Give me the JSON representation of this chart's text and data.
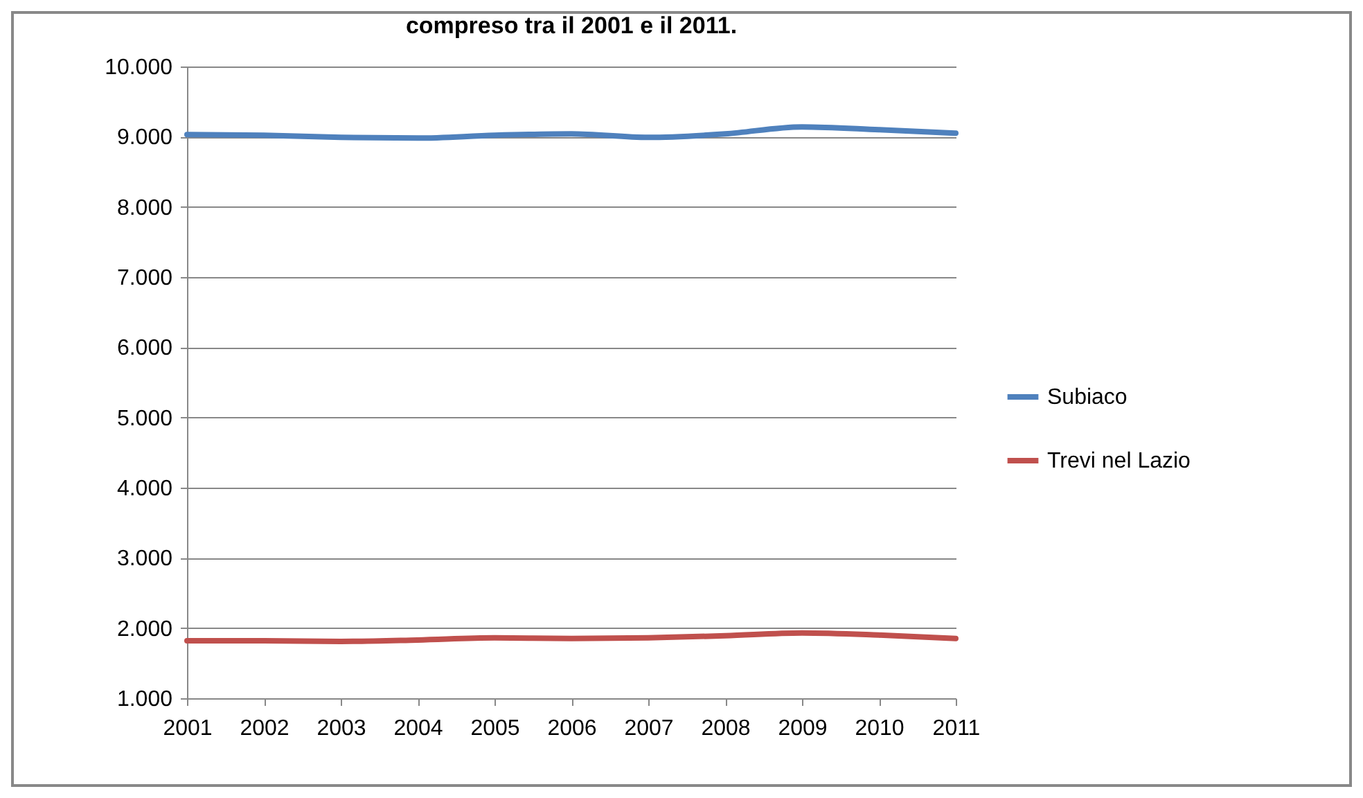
{
  "chart_data": {
    "type": "line",
    "title": "compreso tra il 2001 e il 2011.",
    "categories": [
      "2001",
      "2002",
      "2003",
      "2004",
      "2005",
      "2006",
      "2007",
      "2008",
      "2009",
      "2010",
      "2011"
    ],
    "series": [
      {
        "name": "Subiaco",
        "color": "#4f81bd",
        "values": [
          9030,
          9020,
          8990,
          8980,
          9020,
          9040,
          8990,
          9040,
          9140,
          9100,
          9050
        ]
      },
      {
        "name": "Trevi nel Lazio",
        "color": "#c0504d",
        "values": [
          1820,
          1820,
          1810,
          1830,
          1860,
          1850,
          1860,
          1890,
          1930,
          1900,
          1850
        ]
      }
    ],
    "ylim": [
      1000,
      10000
    ],
    "yticks": [
      {
        "value": 1000,
        "label": "1.000"
      },
      {
        "value": 2000,
        "label": "2.000"
      },
      {
        "value": 3000,
        "label": "3.000"
      },
      {
        "value": 4000,
        "label": "4.000"
      },
      {
        "value": 5000,
        "label": "5.000"
      },
      {
        "value": 6000,
        "label": "6.000"
      },
      {
        "value": 7000,
        "label": "7.000"
      },
      {
        "value": 8000,
        "label": "8.000"
      },
      {
        "value": 9000,
        "label": "9.000"
      },
      {
        "value": 10000,
        "label": "10.000"
      }
    ],
    "grid": "y",
    "legend": "right",
    "marker": "none",
    "line_style": "solid"
  }
}
